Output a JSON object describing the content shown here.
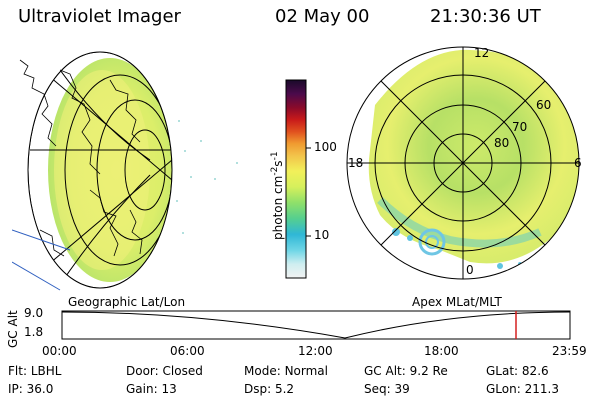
{
  "header": {
    "instrument": "Ultraviolet Imager",
    "date": "02 May 00",
    "time": "21:30:36 UT"
  },
  "left_panel": {
    "caption": "Geographic Lat/Lon"
  },
  "right_panel": {
    "caption": "Apex MLat/MLT",
    "lat_labels": [
      "80",
      "70",
      "60"
    ],
    "mlt_labels": {
      "top": "12",
      "left": "18",
      "right": "6",
      "bottom": "0"
    }
  },
  "colorbar": {
    "unit_label": "photon cm",
    "unit_exp1": "-2",
    "unit_s": "s",
    "unit_exp2": "-1",
    "tick_labels": [
      "100",
      "10"
    ],
    "stops": [
      "#f2f2f2",
      "#cfeef0",
      "#6fd6e6",
      "#2fb7d6",
      "#55cf8f",
      "#8fe06a",
      "#d6f05c",
      "#f2f05a",
      "#f2c24a",
      "#f09a30",
      "#e0501e",
      "#c81a1a",
      "#8a0a2a",
      "#4b0a4b",
      "#1a0a2a"
    ]
  },
  "orbit_plot": {
    "ylabel": "GC Alt",
    "y_ticks": [
      "9.0",
      "1.8"
    ],
    "x_ticks": [
      "00:00",
      "06:00",
      "12:00",
      "18:00",
      "23:59"
    ],
    "marker_color": "#d42020"
  },
  "footer": {
    "row1": [
      {
        "key": "Flt:",
        "value": "LBHL"
      },
      {
        "key": "Door:",
        "value": "Closed"
      },
      {
        "key": "Mode:",
        "value": "Normal"
      },
      {
        "key": "GC Alt:",
        "value": "9.2 Re"
      },
      {
        "key": "GLat:",
        "value": "82.6"
      }
    ],
    "row2": [
      {
        "key": "IP:",
        "value": "36.0"
      },
      {
        "key": "Gain:",
        "value": "13"
      },
      {
        "key": "Dsp:",
        "value": "5.2"
      },
      {
        "key": "Seq:",
        "value": "39"
      },
      {
        "key": "GLon:",
        "value": "211.3"
      }
    ]
  }
}
